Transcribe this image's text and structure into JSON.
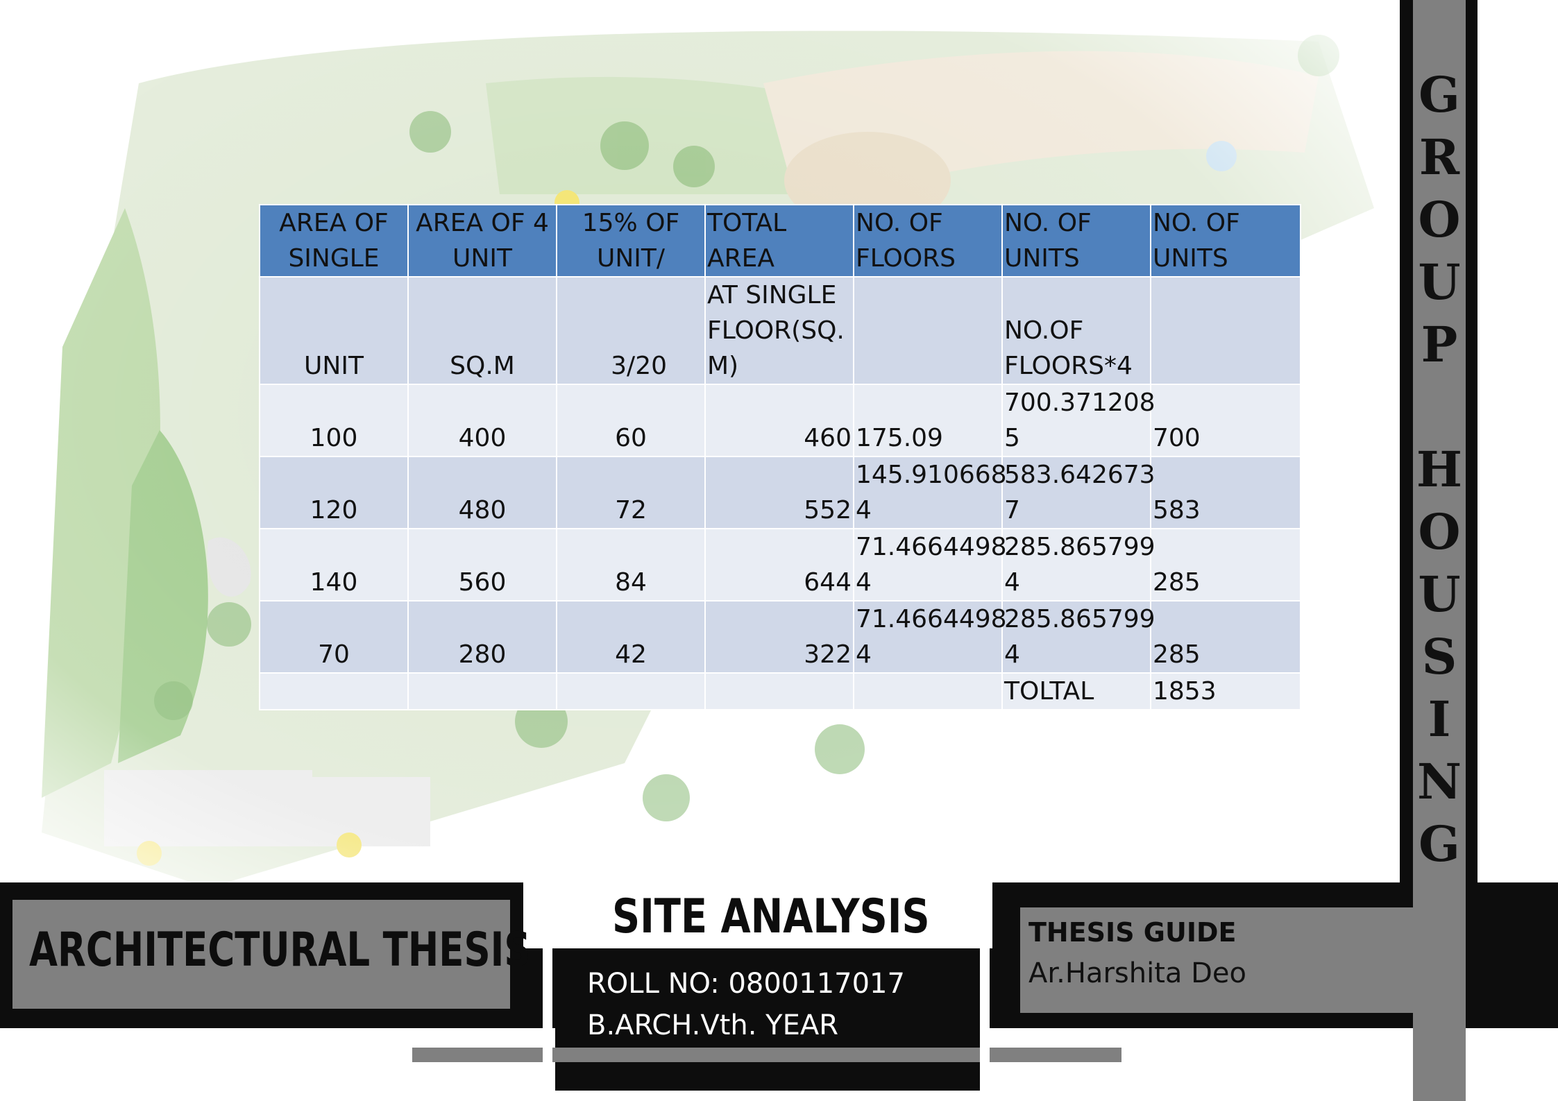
{
  "table": {
    "header": [
      "AREA OF\nSINGLE",
      "AREA OF 4\nUNIT",
      "15% OF\nUNIT/",
      "TOTAL AREA",
      "NO. OF\nFLOORS",
      "NO. OF\nUNITS",
      "NO. OF\nUNITS"
    ],
    "subheader": [
      "UNIT",
      "SQ.M",
      "3/20",
      "AT SINGLE\nFLOOR(SQ.\nM)",
      "",
      "NO.OF\nFLOORS*4",
      ""
    ],
    "rows": [
      [
        "100",
        "400",
        "60",
        "460",
        "175.09",
        "700.371208\n5",
        "700"
      ],
      [
        "120",
        "480",
        "72",
        "552",
        "145.910668\n4",
        "583.642673\n7",
        "583"
      ],
      [
        "140",
        "560",
        "84",
        "644",
        "71.4664498\n4",
        "285.865799\n4",
        "285"
      ],
      [
        "70",
        "280",
        "42",
        "322",
        "71.4664498\n4",
        "285.865799\n4",
        "285"
      ]
    ],
    "total": [
      "",
      "",
      "",
      "",
      "",
      "TOLTAL",
      "1853"
    ]
  },
  "vertical_title": "G\nR\nO\nU\nP\n\nH\nO\nU\nS\nI\nN\nG",
  "footer": {
    "left_title": "ARCHITECTURAL  THESIS",
    "center_title": "SITE ANALYSIS",
    "roll_no": "ROLL NO: 0800117017",
    "year": "B.ARCH.Vth. YEAR",
    "guide_label": "THESIS GUIDE",
    "guide_name": "Ar.Harshita  Deo"
  },
  "colors": {
    "table_header": "#4f81bd",
    "table_row_dark": "#d0d8e8",
    "table_row_light": "#e9edf4",
    "band_black": "#0d0d0d",
    "band_gray": "#808080"
  }
}
